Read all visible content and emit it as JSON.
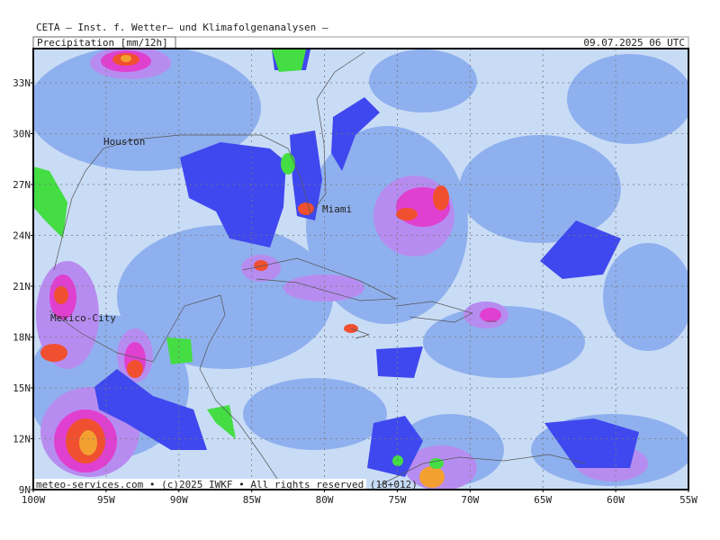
{
  "header": {
    "title": "CETA – Inst. f. Wetter– und Klimafolgenanalysen –",
    "parameter": "Precipitation [mm/12h]",
    "valid_time": "09.07.2025 06 UTC"
  },
  "map": {
    "lat_labels": [
      "9N",
      "12N",
      "15N",
      "18N",
      "21N",
      "24N",
      "27N",
      "30N",
      "33N"
    ],
    "lon_labels": [
      "100W",
      "95W",
      "90W",
      "85W",
      "80W",
      "75W",
      "70W",
      "65W",
      "60W",
      "55W"
    ],
    "cities": [
      "Houston",
      "Miami",
      "Mexico-City"
    ],
    "footer": "meteo-services.com • (c)2025 IWKF • All rights reserved (18+012)"
  }
}
